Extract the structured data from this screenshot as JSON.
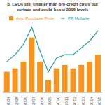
{
  "chart_data": {
    "type": "bar",
    "title": "p. LBOs still smaller than pre-credit crisis but\nsurface and could boost 2016 levels",
    "categories": [
      "2004",
      "2005",
      "2006",
      "2007",
      "2008",
      "2009",
      "2010",
      "2011",
      "2012",
      "2013",
      "2014",
      "2015"
    ],
    "series": [
      {
        "name": "Avg. Purchase Price",
        "type": "bar",
        "color": "#f7941d",
        "values": [
          30,
          35,
          45,
          80,
          45,
          18,
          35,
          40,
          35,
          40,
          45,
          55
        ]
      },
      {
        "name": "PP Multiple",
        "type": "line",
        "axis": "y2",
        "color": "#2a9d9f",
        "values": [
          45,
          55,
          70,
          95,
          60,
          30,
          50,
          55,
          55,
          65,
          75,
          90
        ]
      }
    ],
    "ylim": [
      0,
      100
    ],
    "y2lim": [
      0,
      100
    ],
    "tick_labels": "x",
    "legend": "top"
  }
}
